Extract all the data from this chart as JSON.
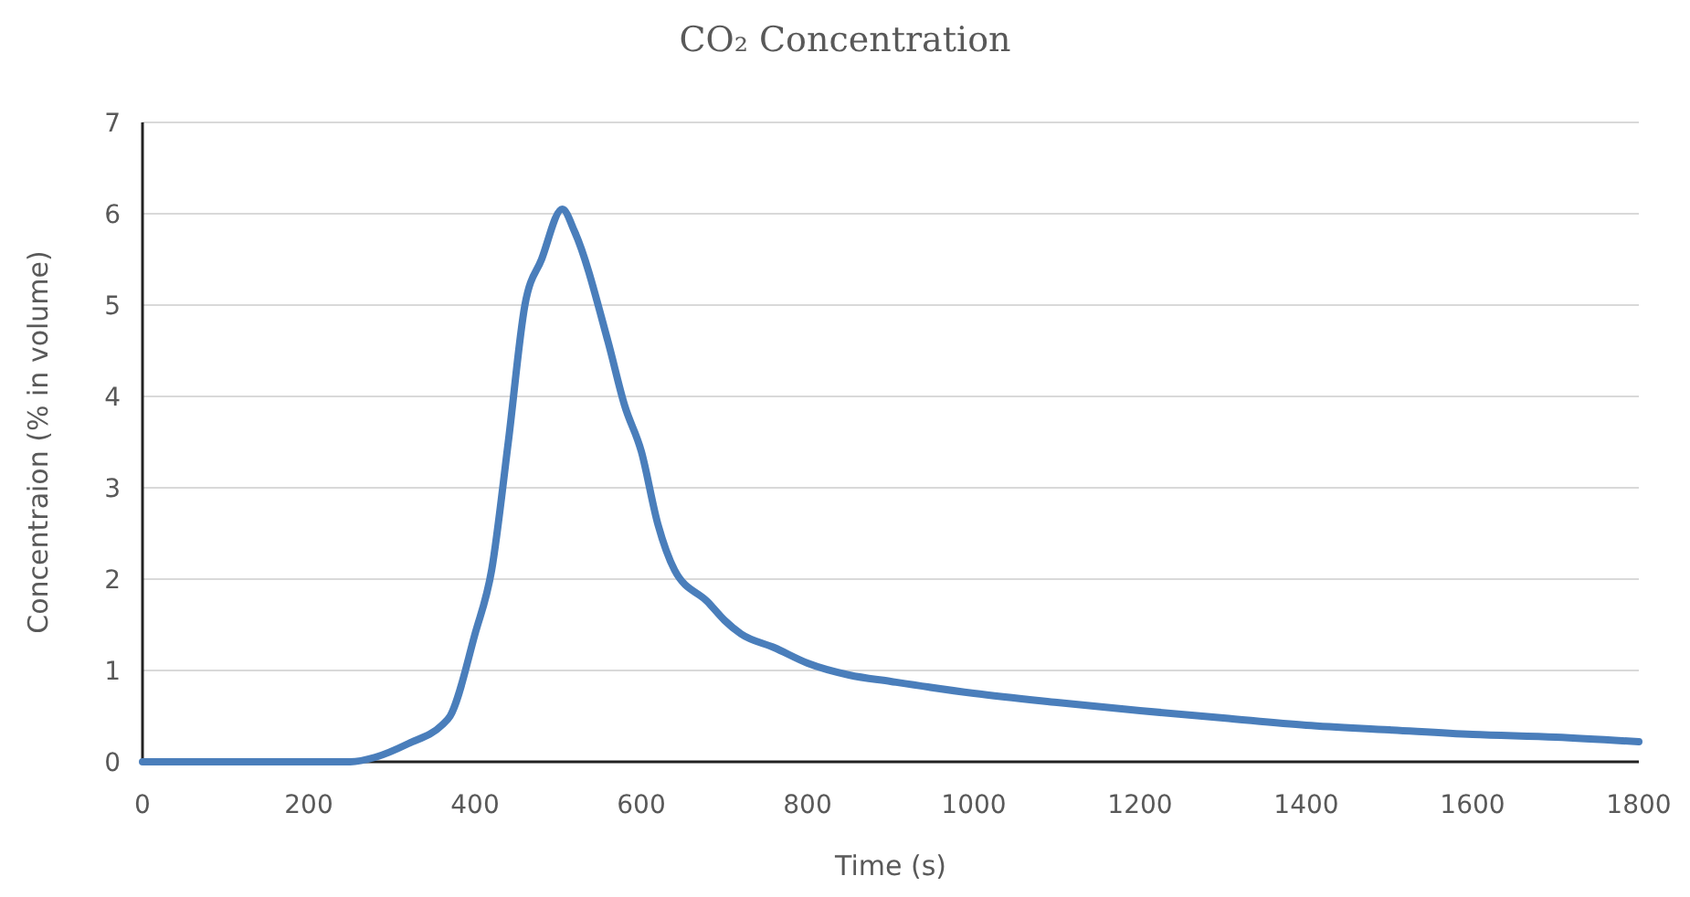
{
  "chart_data": {
    "type": "line",
    "title": "CO₂ Concentration",
    "xlabel": "Time (s)",
    "ylabel": "Concentraion (% in volume)",
    "xlim": [
      0,
      1800
    ],
    "xticks": [
      0,
      200,
      400,
      600,
      800,
      1000,
      1200,
      1400,
      1600,
      1800
    ],
    "ylim": [
      0,
      7
    ],
    "yticks": [
      0,
      1,
      2,
      3,
      4,
      5,
      6,
      7
    ],
    "grid": "y",
    "series": [
      {
        "color": "#4a7ebb",
        "x": [
          0,
          100,
          250,
          280,
          320,
          360,
          370,
          400,
          420,
          440,
          460,
          480,
          505,
          520,
          560,
          580,
          600,
          620,
          640,
          680,
          700,
          720,
          760,
          800,
          850,
          900,
          1000,
          1100,
          1200,
          1300,
          1400,
          1500,
          1600,
          1700,
          1800
        ],
        "values": [
          0,
          0,
          0,
          0.05,
          0.2,
          0.4,
          0.5,
          1.4,
          2.1,
          3.5,
          5.0,
          5.5,
          6.05,
          5.8,
          4.6,
          3.9,
          3.4,
          2.6,
          2.1,
          1.75,
          1.55,
          1.4,
          1.25,
          1.08,
          0.95,
          0.88,
          0.75,
          0.65,
          0.56,
          0.48,
          0.4,
          0.35,
          0.3,
          0.27,
          0.22
        ]
      }
    ]
  }
}
